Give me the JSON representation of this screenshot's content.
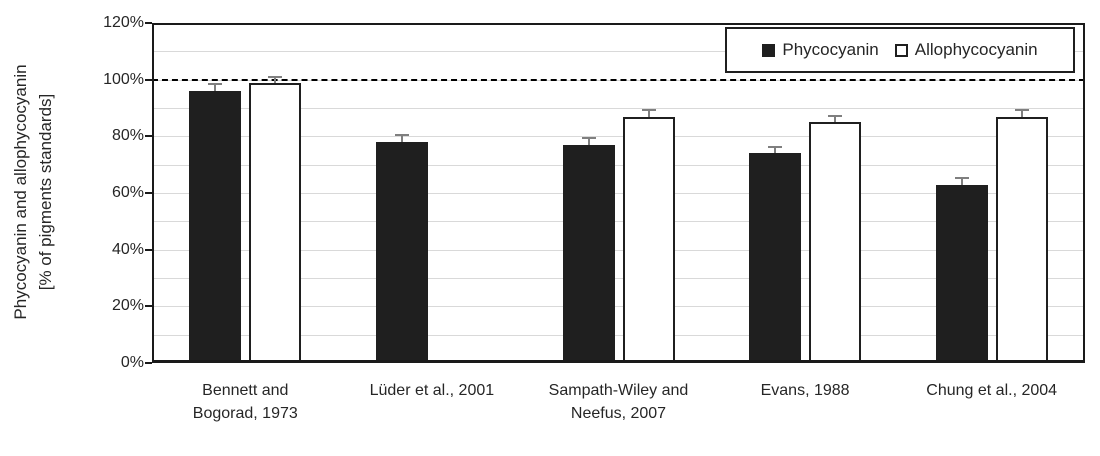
{
  "colors": {
    "bar_fill_dark": "#1f1f1f",
    "bar_fill_light": "#ffffff",
    "bar_border": "#1f1f1f",
    "gridline": "#d9d9d9",
    "error_bar": "#7f7f7f",
    "axis": "#1a1a1a",
    "reference_line": "#000000",
    "text": "#262626"
  },
  "chart_data": {
    "type": "bar",
    "ylabel_line1": "Phycocyanin and allophycocyanin",
    "ylabel_line2": "[% of pigments standards]",
    "categories": [
      "Bennett and\nBogorad, 1973",
      "Lüder et al., 2001",
      "Sampath-Wiley and\nNeefus, 2007",
      "Evans, 1988",
      "Chung et al., 2004"
    ],
    "series": [
      {
        "name": "Phycocyanin",
        "values": [
          96,
          78,
          77,
          74,
          63
        ],
        "errors": [
          2,
          2,
          2,
          2,
          2
        ]
      },
      {
        "name": "Allophycocyanin",
        "values": [
          99,
          null,
          87,
          85,
          87
        ],
        "errors": [
          1.5,
          null,
          2,
          2,
          2
        ]
      }
    ],
    "y_ticks": [
      "0%",
      "20%",
      "40%",
      "60%",
      "80%",
      "100%",
      "120%"
    ],
    "ylim": [
      0,
      120
    ],
    "gridline_step": 10,
    "reference_line": 100,
    "grid": "horizontal, every 10%",
    "legend_position": "top-right"
  }
}
